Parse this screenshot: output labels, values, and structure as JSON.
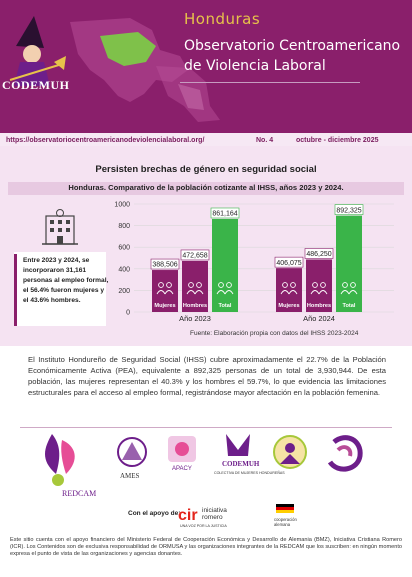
{
  "header": {
    "country": "Honduras",
    "title_line1": "Observatorio Centroamericano",
    "title_line2": "de Violencia Laboral",
    "org_logo": "CODEMUH"
  },
  "infobar": {
    "url": "https://observatoriocentroamericanodeviolencialaboral.org/",
    "number": "No. 4",
    "period": "octubre - diciembre 2025"
  },
  "section": {
    "title": "Persisten brechas de género en seguridad social",
    "subtitle": "Honduras. Comparativo de la población cotizante al IHSS, años 2023 y 2024.",
    "sidebar_text": "Entre 2023 y 2024, se incorporaron 31,161 personas al empleo formal,  el 56.4% fueron mujeres y el 43.6% hombres."
  },
  "chart_data": {
    "type": "bar",
    "categories": [
      "Año 2023",
      "Año 2024"
    ],
    "series": [
      {
        "name": "Mujeres",
        "values": [
          388506,
          406075
        ],
        "labels": [
          "388,506",
          "406,075"
        ],
        "color": "#8a1f6b"
      },
      {
        "name": "Hombres",
        "values": [
          472658,
          486250
        ],
        "labels": [
          "472,658",
          "486,250"
        ],
        "color": "#8a1f6b"
      },
      {
        "name": "Total",
        "values": [
          861164,
          892325
        ],
        "labels": [
          "861,164",
          "892,325"
        ],
        "color": "#3ab449"
      }
    ],
    "yticks": [
      "1000",
      "800",
      "600",
      "400",
      "200",
      "0"
    ],
    "ylim": [
      0,
      1000000
    ],
    "grid": true
  },
  "note": "Fuente: Elaboración propia con datos del IHSS 2023-2024",
  "paragraph": "El Instituto Hondureño de Seguridad Social (IHSS) cubre aproximadamente el 22.7% de la Población Económicamente Activa (PEA), equivalente a 892,325 personas de un total de 3,930,944. De esta población, las mujeres representan el 40.3% y los hombres el 59.7%, lo que evidencia las limitaciones estructurales para el acceso al empleo formal, registrándose mayor afectación en la población femenina.",
  "partners": {
    "redcam": "REDCAM",
    "ames": "AMES",
    "apacy": "APACY",
    "codemuh": "CODEMUH",
    "codemuh_sub": "COLECTIVA DE MUJERES HONDUREÑAS"
  },
  "support": {
    "label": "Con el apoyo de:",
    "cir1": "cir",
    "cir2": "iniciativa",
    "cir3": "romero",
    "cir4": "UNA VOZ POR LA JUSTICIA",
    "de1": "cooperación",
    "de2": "alemana"
  },
  "footer": "Este sitio cuenta con el apoyo financiero del Ministerio Federal de Cooperación Económica y Desarrollo de Alemania (BMZ), Iniciativa Cristiana Romero (ICR). Los Contenidos son de exclusiva responsabilidad de ORMUSA y las organizaciones integrantes de la REDCAM que los suscriben: en ningún momento expresa el punto de vista de las organizaciones y agencias donantes."
}
